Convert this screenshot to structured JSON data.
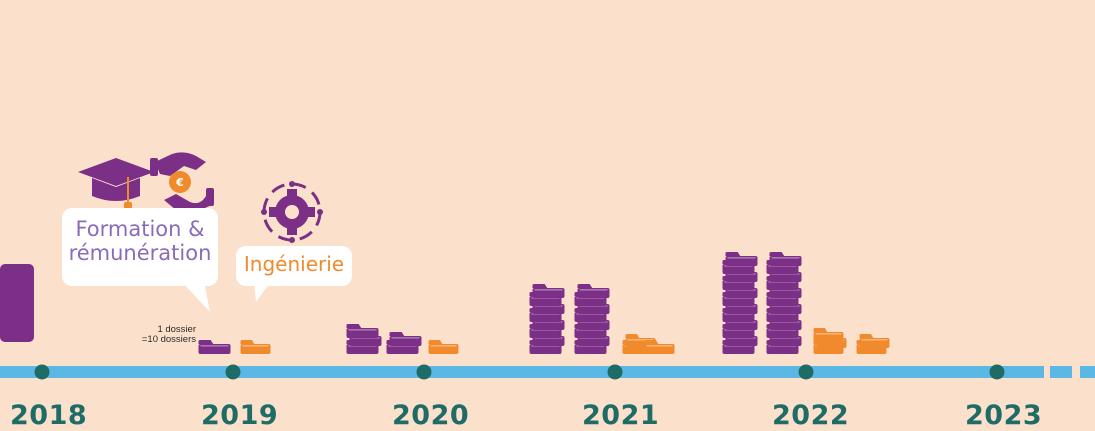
{
  "timeline": {
    "years": [
      "2018",
      "2019",
      "2020",
      "2021",
      "2022",
      "2023"
    ]
  },
  "legend": {
    "line1": "1 dossier",
    "line2": "=10 dossiers"
  },
  "categories": {
    "formation": {
      "label_line1": "Formation &",
      "label_line2": "rémunération",
      "color": "#7b2f86"
    },
    "ingenierie": {
      "label": "Ingénierie",
      "color": "#f08a2c"
    }
  },
  "chart_data": {
    "type": "pictogram",
    "unit_note": "1 dossier =10 dossiers",
    "categories": [
      "2019",
      "2020",
      "2021",
      "2022"
    ],
    "series": [
      {
        "name": "Formation & rémunération",
        "values": [
          1,
          5,
          16,
          24
        ]
      },
      {
        "name": "Ingénierie",
        "values": [
          1,
          1,
          3,
          5
        ]
      }
    ]
  },
  "colors": {
    "background": "#fbe1cc",
    "timeline": "#5bb8e4",
    "dot": "#1f6b66",
    "purple": "#7b2f86",
    "orange": "#f08a2c"
  }
}
